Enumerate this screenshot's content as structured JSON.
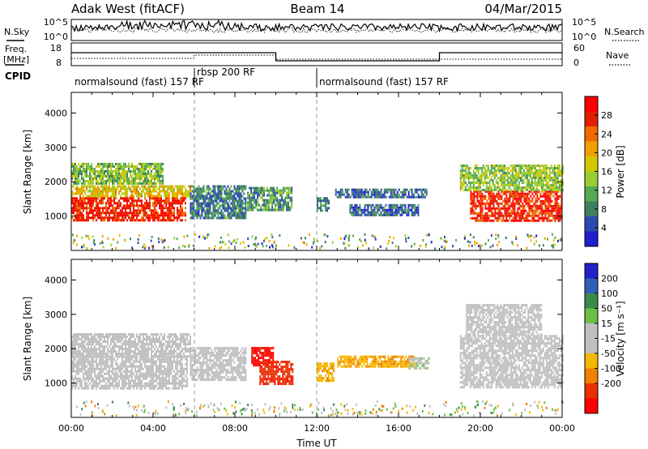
{
  "header": {
    "radar": "Adak West (fitACF)",
    "beam": "Beam 14",
    "date": "04/Mar/2015"
  },
  "panels": {
    "noise": {
      "left_label": "N.Sky",
      "right_label": "N.Search",
      "left_ticks": [
        "10^5",
        "10^0"
      ],
      "right_ticks": [
        "10^5",
        "10^0"
      ]
    },
    "freq": {
      "left_label_1": "Freq.",
      "left_label_2": "[MHz]",
      "right_label": "Nave",
      "left_ticks": [
        "18",
        "8"
      ],
      "right_ticks": [
        "60",
        "0"
      ]
    },
    "cpid": {
      "label": "CPID",
      "segments": [
        {
          "text": "normalsound (fast) 157 RF"
        },
        {
          "text": "rbsp 200 RF"
        },
        {
          "text": "normalsound (fast) 157 RF"
        }
      ]
    }
  },
  "colors": {
    "power_scale": [
      "#1f1fcc",
      "#2a4bb0",
      "#3f7f5f",
      "#55aa55",
      "#9acd32",
      "#d4c800",
      "#f0a000",
      "#f06a00",
      "#e02000",
      "#ff0000"
    ],
    "velocity_scale": [
      "#2222cc",
      "#2f5fb5",
      "#3a8a4a",
      "#6cc046",
      "#c0c0c0",
      "#c0c0c0",
      "#f5b800",
      "#f08000",
      "#e83000",
      "#ff0000"
    ]
  },
  "chart_data": [
    {
      "type": "heatmap",
      "title": "Power",
      "xlabel": "",
      "ylabel": "Slant Range [km]",
      "xlim": [
        0,
        24
      ],
      "ylim": [
        0,
        4600
      ],
      "x_ticks": [],
      "y_ticks": [
        "1000",
        "2000",
        "3000",
        "4000"
      ],
      "colorbar": {
        "label": "Power [dB]",
        "range": [
          0,
          32
        ],
        "ticks": [
          "4",
          "8",
          "12",
          "16",
          "20",
          "24",
          "28"
        ]
      },
      "regions": [
        {
          "t0": 0.0,
          "t1": 5.6,
          "r0": 850,
          "r1": 1550,
          "value": 28
        },
        {
          "t0": 0.0,
          "t1": 5.8,
          "r0": 1550,
          "r1": 1900,
          "value": 18
        },
        {
          "t0": 0.0,
          "t1": 4.5,
          "r0": 1950,
          "r1": 2550,
          "value": 13
        },
        {
          "t0": 5.8,
          "t1": 8.5,
          "r0": 950,
          "r1": 1900,
          "value": 8
        },
        {
          "t0": 8.6,
          "t1": 10.8,
          "r0": 1150,
          "r1": 1850,
          "value": 10
        },
        {
          "t0": 12.0,
          "t1": 12.6,
          "r0": 1150,
          "r1": 1550,
          "value": 8
        },
        {
          "t0": 12.9,
          "t1": 17.4,
          "r0": 1550,
          "r1": 1800,
          "value": 6
        },
        {
          "t0": 13.6,
          "t1": 17.0,
          "r0": 1050,
          "r1": 1350,
          "value": 6
        },
        {
          "t0": 19.5,
          "t1": 24.0,
          "r0": 850,
          "r1": 1750,
          "value": 28
        },
        {
          "t0": 19.0,
          "t1": 24.0,
          "r0": 1750,
          "r1": 2500,
          "value": 14
        }
      ]
    },
    {
      "type": "heatmap",
      "title": "Velocity",
      "xlabel": "Time UT",
      "ylabel": "Slant Range [km]",
      "xlim": [
        0,
        24
      ],
      "ylim": [
        0,
        4600
      ],
      "x_ticks": [
        "00:00",
        "04:00",
        "08:00",
        "12:00",
        "16:00",
        "20:00",
        "00:00"
      ],
      "y_ticks": [
        "1000",
        "2000",
        "3000",
        "4000"
      ],
      "colorbar": {
        "label": "Velocity [m s⁻¹]",
        "range": [
          -250,
          250
        ],
        "ticks": [
          "200",
          "100",
          "50",
          "15",
          "-15",
          "-50",
          "-100",
          "-200"
        ]
      },
      "regions": [
        {
          "t0": 0.0,
          "t1": 5.7,
          "r0": 850,
          "r1": 1800,
          "value": 0
        },
        {
          "t0": 0.0,
          "t1": 5.8,
          "r0": 1800,
          "r1": 2450,
          "value": 5
        },
        {
          "t0": 5.8,
          "t1": 8.5,
          "r0": 1100,
          "r1": 2050,
          "value": 0
        },
        {
          "t0": 8.8,
          "t1": 9.9,
          "r0": 1550,
          "r1": 2050,
          "value": -220
        },
        {
          "t0": 9.2,
          "t1": 10.8,
          "r0": 1000,
          "r1": 1650,
          "value": -180
        },
        {
          "t0": 12.0,
          "t1": 12.8,
          "r0": 1100,
          "r1": 1600,
          "value": -80
        },
        {
          "t0": 13.0,
          "t1": 16.8,
          "r0": 1500,
          "r1": 1800,
          "value": -90
        },
        {
          "t0": 16.5,
          "t1": 17.5,
          "r0": 1450,
          "r1": 1750,
          "value": 40
        },
        {
          "t0": 19.0,
          "t1": 24.0,
          "r0": 850,
          "r1": 2400,
          "value": 0
        },
        {
          "t0": 19.3,
          "t1": 23.0,
          "r0": 2400,
          "r1": 3300,
          "value": 20
        }
      ]
    }
  ]
}
